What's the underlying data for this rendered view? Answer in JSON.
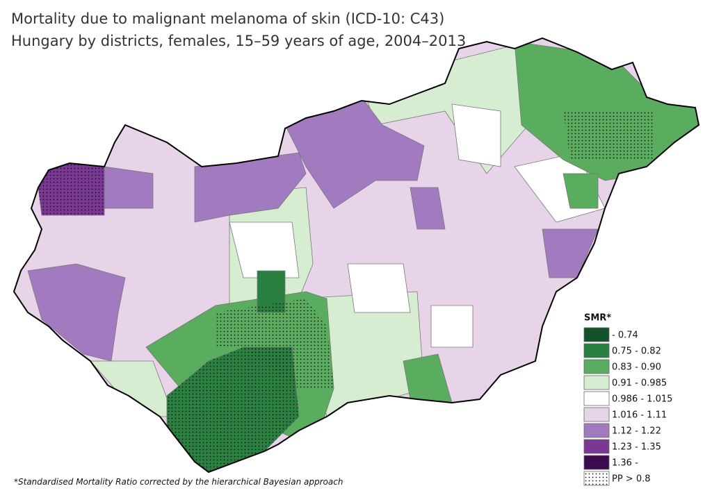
{
  "header": {
    "title": "Mortality due to malignant melanoma of skin (ICD-10: C43)",
    "subtitle": "Hungary by districts, females, 15–59 years of age, 2004–2013"
  },
  "legend": {
    "title": "SMR*",
    "items": [
      {
        "label": "- 0.74",
        "color": "#14532a"
      },
      {
        "label": "0.75 - 0.82",
        "color": "#2a8040"
      },
      {
        "label": "0.83 - 0.90",
        "color": "#5aac5e"
      },
      {
        "label": "0.91 - 0.985",
        "color": "#d6edd2"
      },
      {
        "label": "0.986 - 1.015",
        "color": "#ffffff"
      },
      {
        "label": "1.016 - 1.11",
        "color": "#e8d4e8"
      },
      {
        "label": "1.12 - 1.22",
        "color": "#a27ac0"
      },
      {
        "label": "1.23 - 1.35",
        "color": "#7a3895"
      },
      {
        "label": "1.36 -",
        "color": "#3c0a4e"
      }
    ],
    "pattern_label": "PP > 0.8"
  },
  "footnote": "*Standardised Mortality Ratio corrected by the hierarchical Bayesian approach"
}
